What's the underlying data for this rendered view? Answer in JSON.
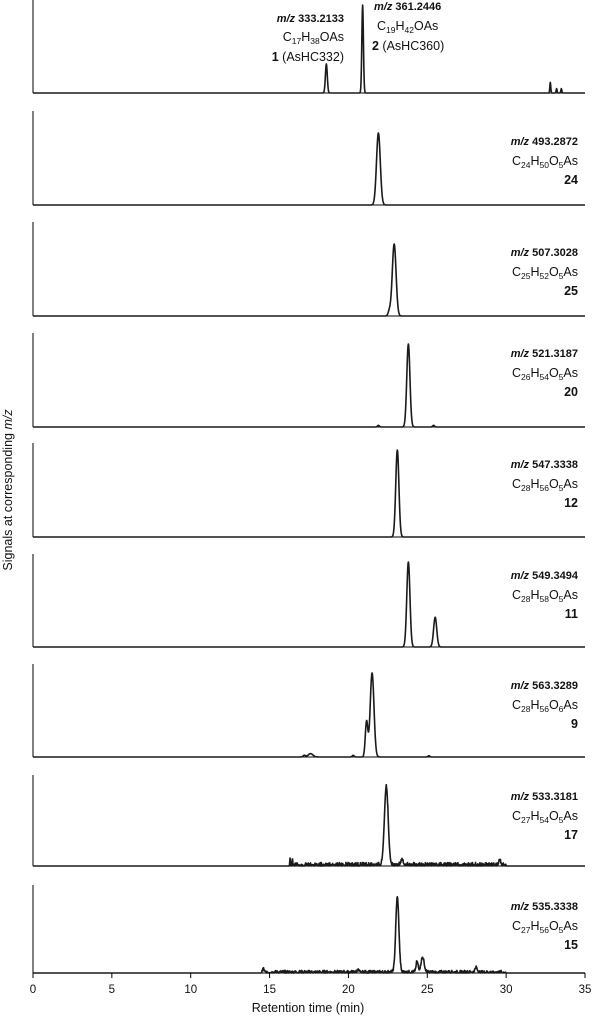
{
  "chart_data": {
    "type": "line",
    "xlabel": "Retention time (min)",
    "ylabel_prefix": "Signals at corresponding ",
    "ylabel_italic": "m/z",
    "xlim": [
      0,
      35
    ],
    "xticks": [
      0,
      5,
      10,
      15,
      20,
      25,
      30,
      35
    ],
    "panels": [
      {
        "name": "top",
        "peaks": [
          [
            18.6,
            0.33,
            0.06
          ],
          [
            20.9,
            1.0,
            0.05
          ],
          [
            32.8,
            0.12,
            0.03
          ],
          [
            33.2,
            0.05,
            0.03
          ],
          [
            33.5,
            0.05,
            0.03
          ]
        ],
        "noise": [],
        "labels": [
          {
            "mz_prefix": "m/z",
            "mz": "333.2133",
            "formula": [
              "C",
              "17",
              "H",
              "38",
              "OAs"
            ],
            "compound_num": "1",
            "compound_name": "(AsHC332)"
          },
          {
            "mz_prefix": "m/z",
            "mz": "361.2446",
            "formula": [
              "C",
              "19",
              "H",
              "42",
              "OAs"
            ],
            "compound_num": "2",
            "compound_name": "(AsHC360)"
          }
        ]
      },
      {
        "name": "24",
        "peaks": [
          [
            21.9,
            1.0,
            0.12
          ]
        ],
        "noise": [],
        "labels": [
          {
            "mz_prefix": "m/z",
            "mz": "493.2872",
            "formula": [
              "C",
              "24",
              "H",
              "50",
              "O",
              "5",
              "As"
            ],
            "compound_num": "24"
          }
        ]
      },
      {
        "name": "25",
        "peaks": [
          [
            22.9,
            1.0,
            0.12
          ],
          [
            22.6,
            0.07,
            0.08
          ]
        ],
        "noise": [],
        "labels": [
          {
            "mz_prefix": "m/z",
            "mz": "507.3028",
            "formula": [
              "C",
              "25",
              "H",
              "52",
              "O",
              "5",
              "As"
            ],
            "compound_num": "25"
          }
        ]
      },
      {
        "name": "20",
        "peaks": [
          [
            23.8,
            1.0,
            0.1
          ],
          [
            21.9,
            0.02,
            0.06
          ],
          [
            25.4,
            0.02,
            0.06
          ]
        ],
        "noise": [],
        "labels": [
          {
            "mz_prefix": "m/z",
            "mz": "521.3187",
            "formula": [
              "C",
              "26",
              "H",
              "54",
              "O",
              "5",
              "As"
            ],
            "compound_num": "20"
          }
        ]
      },
      {
        "name": "12",
        "peaks": [
          [
            23.1,
            1.0,
            0.1
          ]
        ],
        "noise": [],
        "labels": [
          {
            "mz_prefix": "m/z",
            "mz": "547.3338",
            "formula": [
              "C",
              "28",
              "H",
              "56",
              "O",
              "5",
              "As"
            ],
            "compound_num": "12"
          }
        ]
      },
      {
        "name": "11",
        "peaks": [
          [
            23.8,
            1.0,
            0.1
          ],
          [
            25.5,
            0.35,
            0.1
          ]
        ],
        "noise": [],
        "labels": [
          {
            "mz_prefix": "m/z",
            "mz": "549.3494",
            "formula": [
              "C",
              "28",
              "H",
              "58",
              "O",
              "5",
              "As"
            ],
            "compound_num": "11"
          }
        ]
      },
      {
        "name": "9",
        "peaks": [
          [
            21.5,
            1.0,
            0.12
          ],
          [
            21.15,
            0.42,
            0.08
          ],
          [
            17.6,
            0.04,
            0.15
          ],
          [
            17.2,
            0.02,
            0.08
          ],
          [
            20.3,
            0.02,
            0.06
          ],
          [
            25.1,
            0.015,
            0.06
          ]
        ],
        "noise": [],
        "labels": [
          {
            "mz_prefix": "m/z",
            "mz": "563.3289",
            "formula": [
              "C",
              "28",
              "H",
              "56",
              "O",
              "6",
              "As"
            ],
            "compound_num": "9"
          }
        ]
      },
      {
        "name": "17",
        "peaks": [
          [
            22.4,
            1.0,
            0.12
          ],
          [
            16.3,
            0.1,
            0.02
          ],
          [
            16.45,
            0.1,
            0.02
          ],
          [
            23.4,
            0.07,
            0.08
          ],
          [
            29.6,
            0.07,
            0.06
          ]
        ],
        "noise": [
          16.5,
          30.0,
          0.045
        ],
        "labels": [
          {
            "mz_prefix": "m/z",
            "mz": "533.3181",
            "formula": [
              "C",
              "27",
              "H",
              "54",
              "O",
              "5",
              "As"
            ],
            "compound_num": "17"
          }
        ]
      },
      {
        "name": "15",
        "peaks": [
          [
            23.1,
            1.0,
            0.1
          ],
          [
            24.7,
            0.2,
            0.1
          ],
          [
            24.35,
            0.14,
            0.07
          ],
          [
            28.1,
            0.06,
            0.08
          ],
          [
            14.6,
            0.05,
            0.05
          ],
          [
            20.6,
            0.03,
            0.06
          ]
        ],
        "noise": [
          14.5,
          30.0,
          0.035
        ],
        "labels": [
          {
            "mz_prefix": "m/z",
            "mz": "535.3338",
            "formula": [
              "C",
              "27",
              "H",
              "56",
              "O",
              "5",
              "As"
            ],
            "compound_num": "15"
          }
        ]
      }
    ]
  }
}
